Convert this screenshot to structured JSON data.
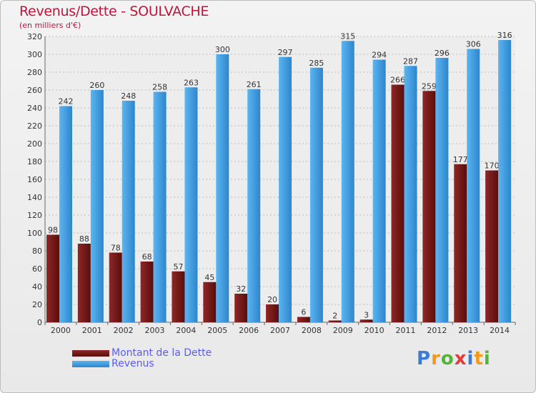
{
  "chart_data": {
    "type": "bar",
    "title": "Revenus/Dette - SOULVACHE",
    "subtitle": "(en milliers d'€)",
    "categories": [
      "2000",
      "2001",
      "2002",
      "2003",
      "2004",
      "2005",
      "2006",
      "2007",
      "2008",
      "2009",
      "2010",
      "2011",
      "2012",
      "2013",
      "2014"
    ],
    "series": [
      {
        "name": "Montant de la Dette",
        "color": "#7a1a1a",
        "values": [
          98,
          88,
          78,
          68,
          57,
          45,
          32,
          20,
          6,
          2,
          3,
          266,
          259,
          177,
          170
        ]
      },
      {
        "name": "Revenus",
        "color": "#4aa3e6",
        "values": [
          242,
          260,
          248,
          258,
          263,
          300,
          261,
          297,
          285,
          315,
          294,
          287,
          296,
          306,
          316
        ]
      }
    ],
    "ylim": [
      0,
      320
    ],
    "yticks": [
      0,
      20,
      40,
      60,
      80,
      100,
      120,
      140,
      160,
      180,
      200,
      220,
      240,
      260,
      280,
      300,
      320
    ],
    "grid": true,
    "legend_position": "bottom-left"
  },
  "logo": {
    "text": "Proxiti",
    "letters": [
      "P",
      "r",
      "o",
      "x",
      "i",
      "t",
      "i"
    ]
  }
}
